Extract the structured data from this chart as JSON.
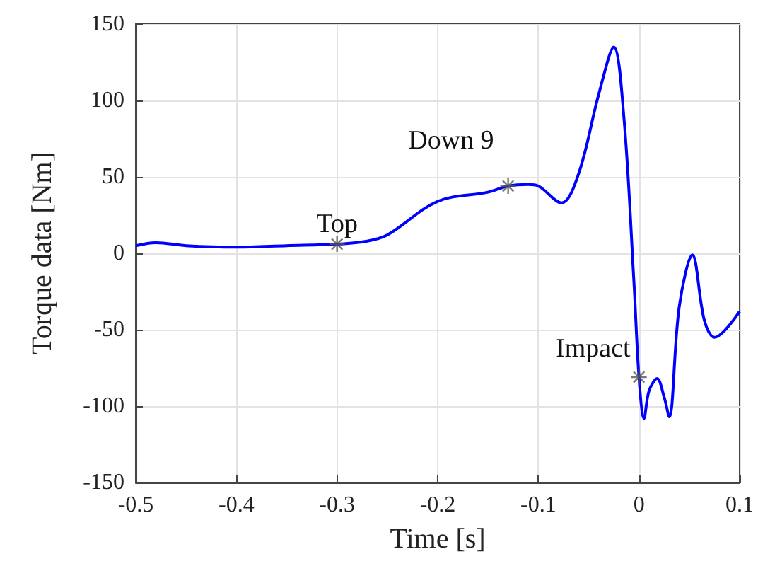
{
  "chart_data": {
    "type": "line",
    "xlabel": "Time [s]",
    "ylabel": "Torque data [Nm]",
    "xlim": [
      -0.5,
      0.1
    ],
    "xticks": [
      -0.5,
      -0.4,
      -0.3,
      -0.2,
      -0.1,
      0,
      0.1
    ],
    "ylim": [
      -150,
      150
    ],
    "yticks": [
      -150,
      -100,
      -50,
      0,
      50,
      100,
      150
    ],
    "grid": true,
    "series": [
      {
        "color": "#0000ff",
        "marker": "none",
        "x": [
          -0.5,
          -0.48,
          -0.45,
          -0.4,
          -0.35,
          -0.3,
          -0.27,
          -0.25,
          -0.2,
          -0.15,
          -0.13,
          -0.11,
          -0.1,
          -0.077,
          -0.06,
          -0.04,
          -0.025,
          -0.015,
          -0.005,
          0,
          0.005,
          0.01,
          0.018,
          0.025,
          0.03,
          0.04,
          0.053,
          0.065,
          0.075,
          0.1
        ],
        "values": [
          5,
          7,
          5,
          4,
          5,
          6,
          8,
          12,
          34,
          40,
          44,
          45,
          44,
          33,
          52,
          104,
          135,
          89,
          -19,
          -81,
          -108,
          -90,
          -82,
          -94,
          -107,
          -35,
          -1,
          -44,
          -55,
          -38
        ]
      },
      {
        "type": "scatter",
        "color": "#555555",
        "marker": "cross",
        "x": [
          -0.3,
          -0.13,
          0
        ],
        "values": [
          6,
          44,
          -81
        ]
      }
    ],
    "annotations": [
      {
        "text": "Top",
        "x": -0.3,
        "y": 6
      },
      {
        "text": "Down 9",
        "x": -0.13,
        "y": 44
      },
      {
        "text": "Impact",
        "x": 0,
        "y": -81
      }
    ]
  }
}
